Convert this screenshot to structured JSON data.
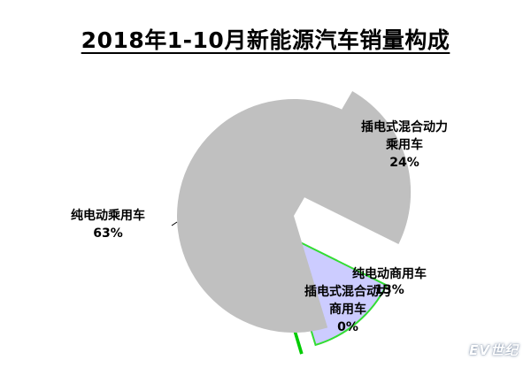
{
  "chart_data": {
    "type": "pie",
    "title": "2018年1-10月新能源汽车销量构成",
    "slices": [
      {
        "label_lines": [
          "插电式混合动力",
          "乘用车"
        ],
        "pct_text": "24%",
        "value": 24,
        "color": "#c0c0c0"
      },
      {
        "label_lines": [
          "纯电动商用车"
        ],
        "pct_text": "13%",
        "value": 13,
        "color": "#ccccff"
      },
      {
        "label_lines": [
          "插电式混合动力",
          "商用车"
        ],
        "pct_text": "0%",
        "value": 0,
        "color": "#00cc00"
      },
      {
        "label_lines": [
          "纯电动乘用车"
        ],
        "pct_text": "63%",
        "value": 63,
        "color": "#c0c0c0"
      }
    ],
    "legend": "none",
    "exploded": true
  },
  "watermark": "EV世纪"
}
